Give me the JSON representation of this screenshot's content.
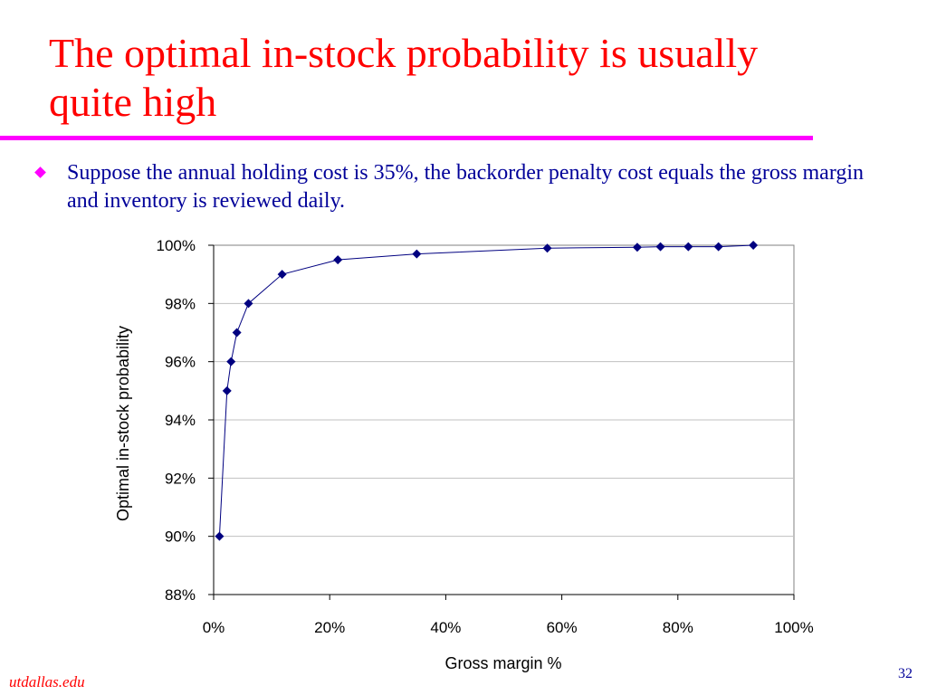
{
  "slide": {
    "title": "The optimal in-stock probability is usually quite high",
    "bullet": "Suppose the annual holding cost is 35%, the backorder penalty cost equals the gross margin and inventory is reviewed daily.",
    "footer_left": "utdallas.edu",
    "page_number": "32"
  },
  "colors": {
    "title": "#ff0000",
    "rule": "#ff00ff",
    "bullet_marker": "#ff00ff",
    "body_text": "#000099",
    "series": "#000080"
  },
  "chart_data": {
    "type": "scatter",
    "title": "",
    "xlabel": "Gross margin %",
    "ylabel": "Optimal in-stock probability",
    "xlim": [
      0,
      100
    ],
    "ylim": [
      88,
      100
    ],
    "x_ticks": [
      "0%",
      "20%",
      "40%",
      "60%",
      "80%",
      "100%"
    ],
    "y_ticks": [
      "88%",
      "90%",
      "92%",
      "94%",
      "96%",
      "98%",
      "100%"
    ],
    "grid": "horizontal",
    "legend": "none",
    "markers": "diamond",
    "connected": true,
    "series": [
      {
        "x": [
          1.0,
          2.3,
          3.0,
          4.0,
          6.0,
          11.8,
          21.4,
          35.0,
          57.5,
          73.0,
          77.0,
          81.8,
          87.0,
          93.0
        ],
        "y": [
          90.0,
          95.0,
          96.0,
          97.0,
          98.0,
          99.0,
          99.5,
          99.7,
          99.9,
          99.93,
          99.95,
          99.95,
          99.95,
          100.0
        ]
      }
    ]
  }
}
